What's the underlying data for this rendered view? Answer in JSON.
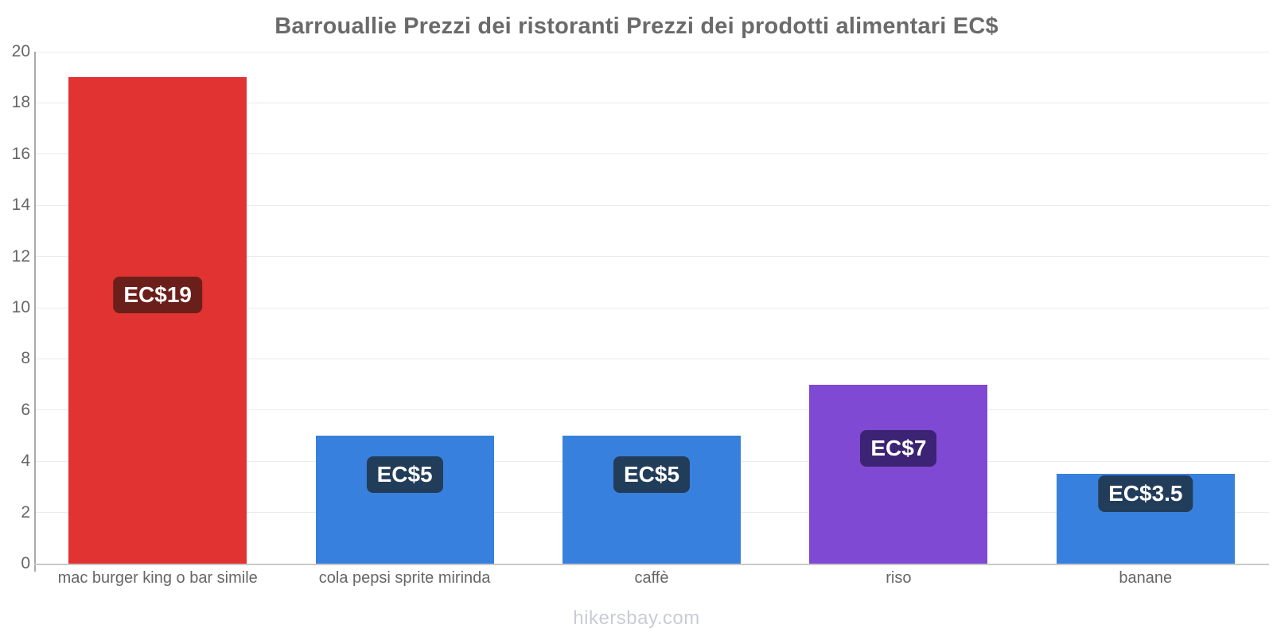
{
  "title": "Barrouallie Prezzi dei ristoranti Prezzi dei prodotti alimentari EC$",
  "footer": "hikersbay.com",
  "chart_data": {
    "type": "bar",
    "title": "Barrouallie Prezzi dei ristoranti Prezzi dei prodotti alimentari EC$",
    "categories": [
      "mac burger king o bar simile",
      "cola pepsi sprite mirinda",
      "caffè",
      "riso",
      "banane"
    ],
    "values": [
      19,
      5,
      5,
      7,
      3.5
    ],
    "value_labels": [
      "EC$19",
      "EC$5",
      "EC$5",
      "EC$7",
      "EC$3.5"
    ],
    "bar_colors": [
      "#e13331",
      "#3880dd",
      "#3880dd",
      "#7f49d3",
      "#3880dd"
    ],
    "label_bg_colors": [
      "#6b1f1a",
      "#223d5a",
      "#223d5a",
      "#3c2373",
      "#223d5a"
    ],
    "xlabel": "",
    "ylabel": "",
    "ylim": [
      0,
      20
    ],
    "yticks": [
      0,
      2,
      4,
      6,
      8,
      10,
      12,
      14,
      16,
      18,
      20
    ],
    "grid": "horizontal, very light",
    "legend": "none",
    "currency": "EC$",
    "colors": {
      "title_text": "#6a6a6a",
      "axis_text": "#666666",
      "y_axis_line": "#a9a9a9",
      "x_axis_line": "#c9c9c9",
      "grid_line": "#ebebeb",
      "value_label_text": "#ffffff",
      "watermark_text": "#c8ccd6",
      "background": "#ffffff"
    }
  }
}
